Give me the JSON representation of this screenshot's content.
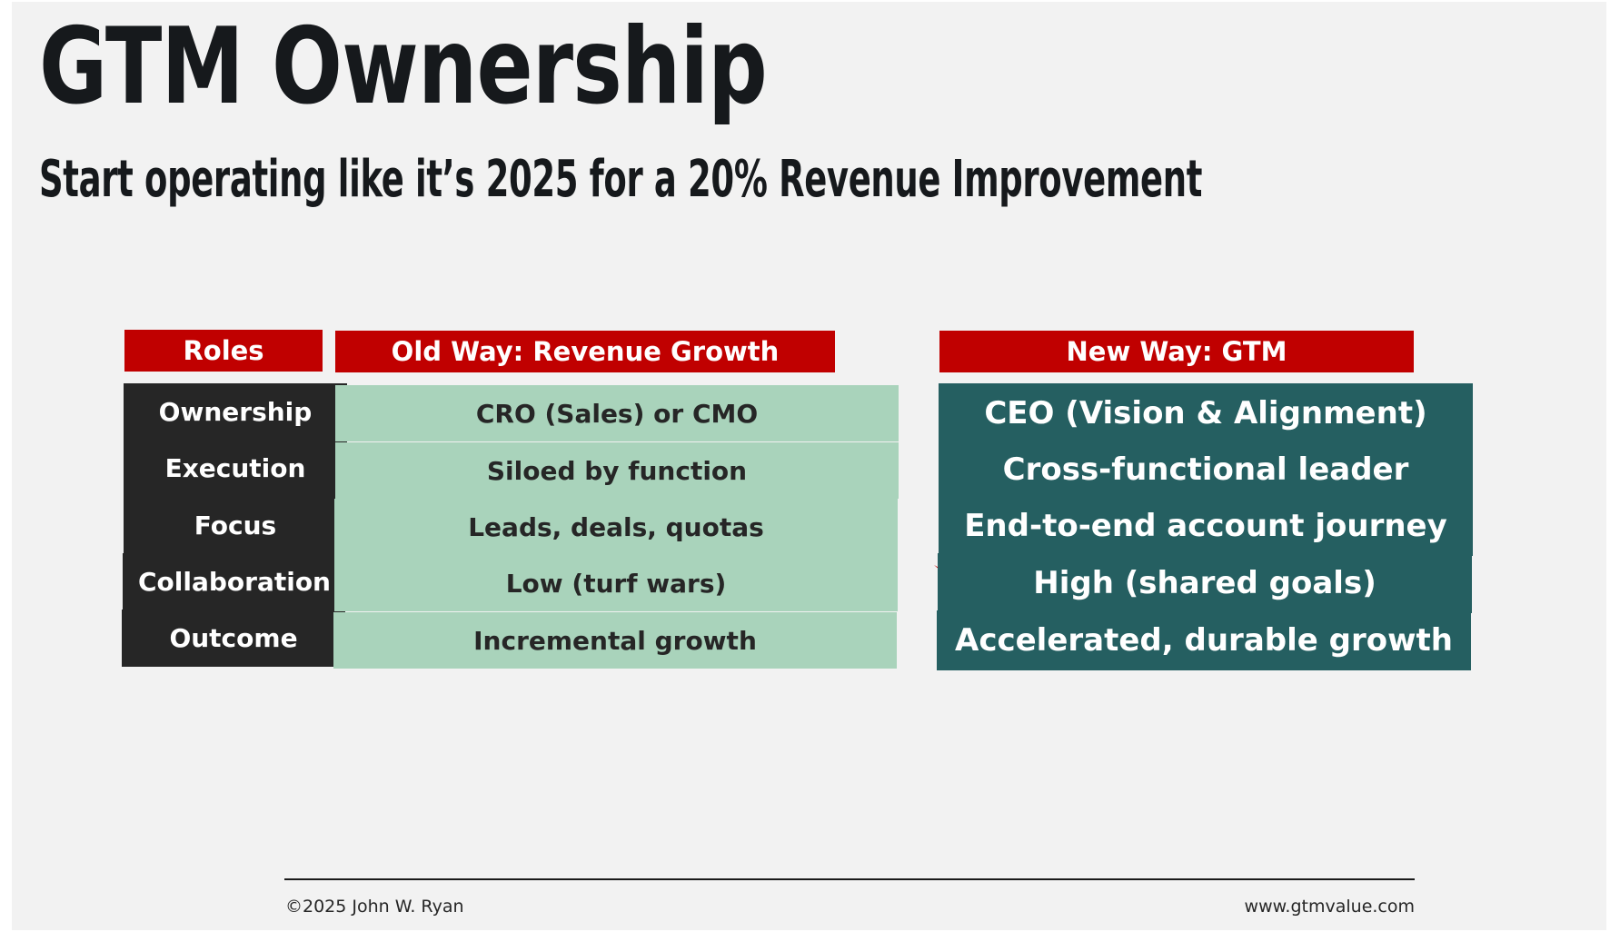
{
  "slide": {
    "title": "GTM Ownership",
    "subtitle": "Start operating like it’s 2025 for a 20% Revenue Improvement"
  },
  "table": {
    "headers": {
      "roles": "Roles",
      "old_way": "Old Way: Revenue Growth",
      "new_way": "New Way: GTM"
    },
    "rows": [
      {
        "role": "Ownership",
        "old": "CRO (Sales) or CMO",
        "new": "CEO (Vision & Alignment)"
      },
      {
        "role": "Execution",
        "old": "Siloed by function",
        "new": "Cross-functional leader"
      },
      {
        "role": "Focus",
        "old": "Leads, deals, quotas",
        "new": "End-to-end account journey"
      },
      {
        "role": "Collaboration",
        "old": "Low (turf wars)",
        "new": "High (shared goals)"
      },
      {
        "role": "Outcome",
        "old": "Incremental growth",
        "new": "Accelerated, durable growth"
      }
    ]
  },
  "icons": {
    "transition_arrow": "curved-arrow-right-icon"
  },
  "colors": {
    "header_red": "#c00000",
    "role_dark": "#262626",
    "old_way_green": "#a9d3bb",
    "new_way_teal": "#255f61",
    "background": "#f2f2f2"
  },
  "footer": {
    "copyright": "©2025 John W. Ryan",
    "website": "www.gtmvalue.com"
  }
}
